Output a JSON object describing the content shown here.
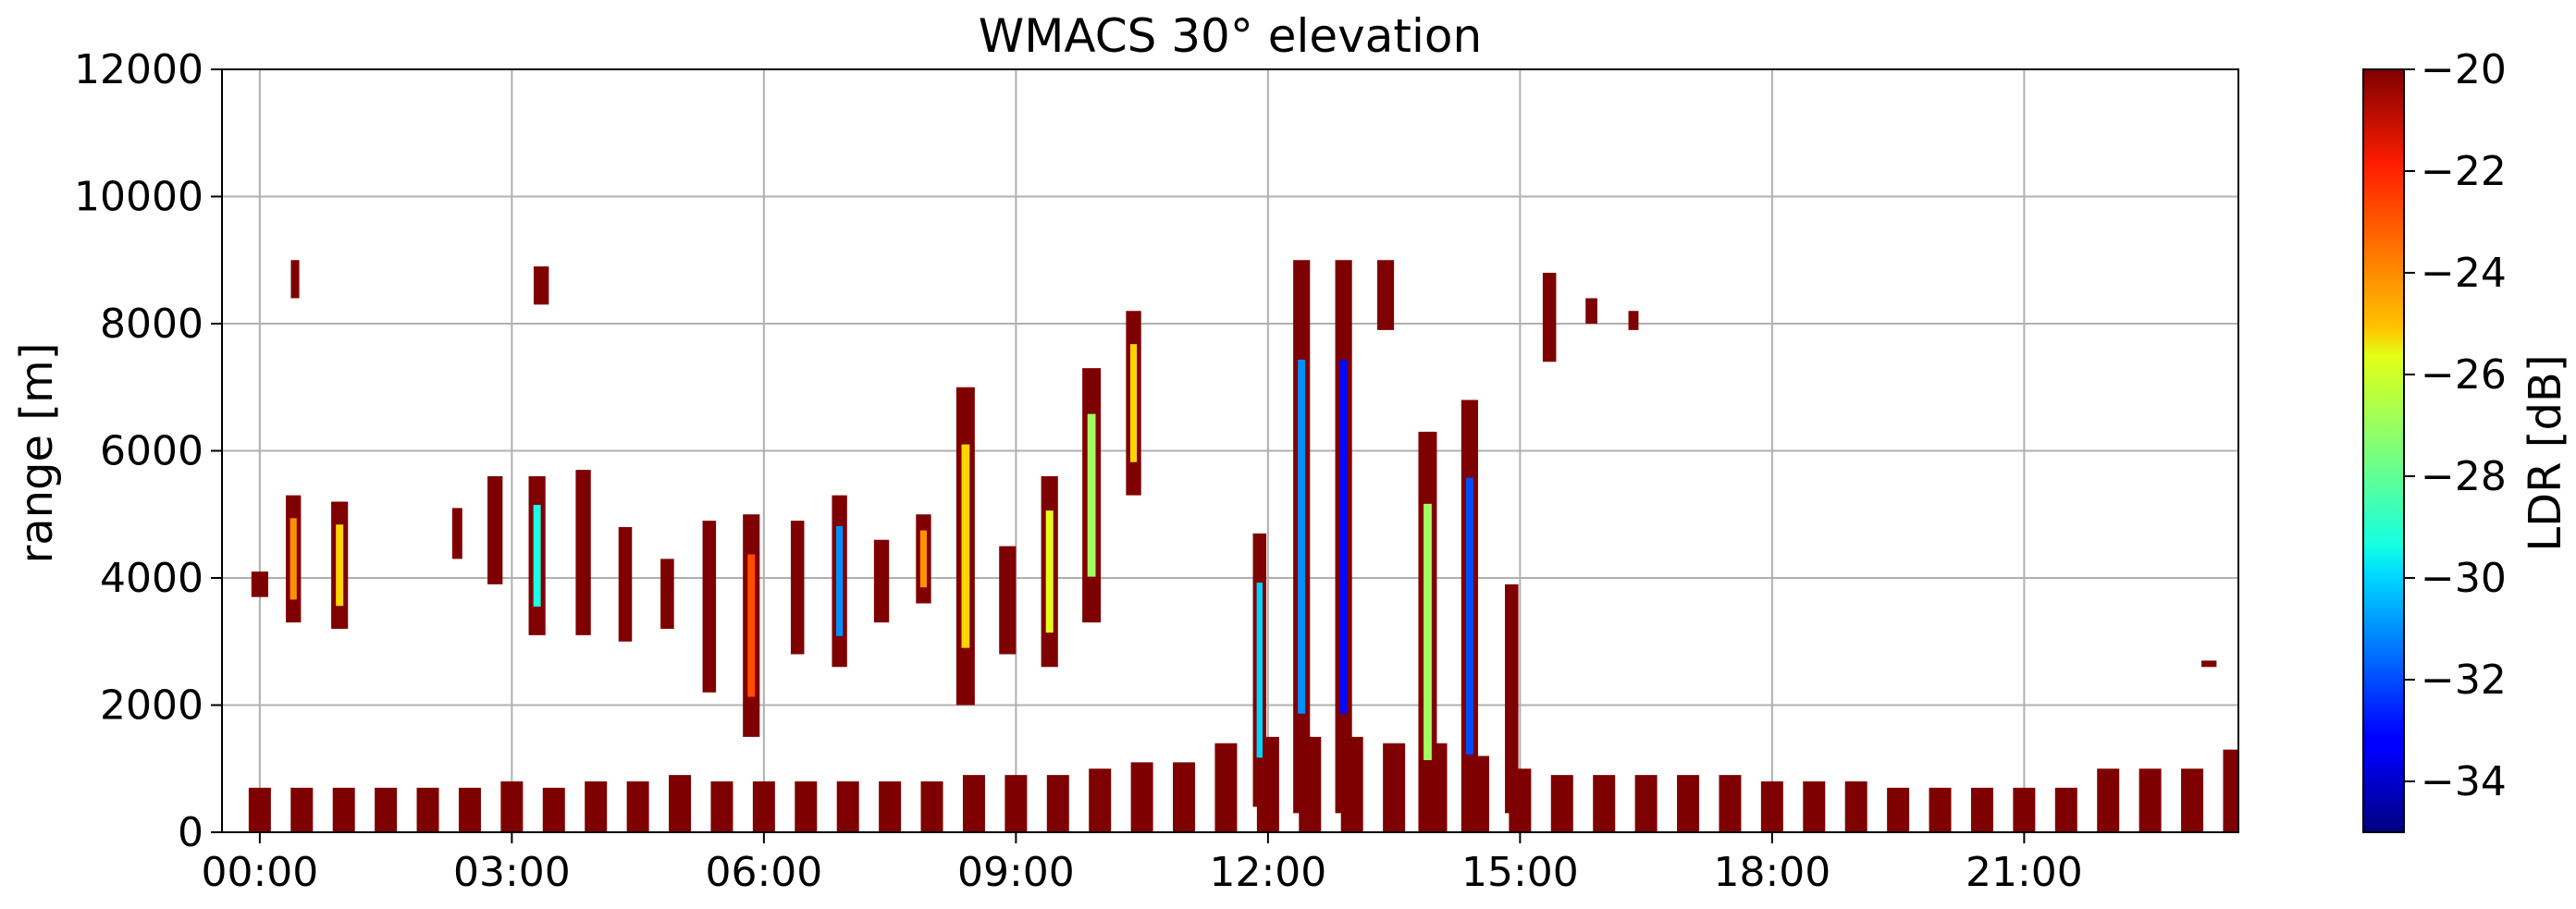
{
  "chart_data": {
    "type": "heatmap",
    "title": "WMACS 30° elevation",
    "ylabel": "range [m]",
    "xlabel": "",
    "colorbar_label": "LDR [dB]",
    "x_ticks": [
      "00:00",
      "03:00",
      "06:00",
      "09:00",
      "12:00",
      "15:00",
      "18:00",
      "21:00"
    ],
    "x_tick_hours": [
      0,
      3,
      6,
      9,
      12,
      15,
      18,
      21
    ],
    "xlim_hours": [
      -0.45,
      23.55
    ],
    "y_ticks": [
      0,
      2000,
      4000,
      6000,
      8000,
      10000,
      12000
    ],
    "ylim": [
      0,
      12000
    ],
    "colorbar_ticks": [
      -20,
      -22,
      -24,
      -26,
      -28,
      -30,
      -32,
      -34
    ],
    "colorbar_range": [
      -35,
      -20
    ],
    "colormap": "jet",
    "grid": true,
    "profiles": [
      {
        "t": 0.0,
        "w": 0.2,
        "y0": 3700,
        "y1": 4100,
        "ldr": -20
      },
      {
        "t": 0.4,
        "w": 0.18,
        "y0": 3300,
        "y1": 5300,
        "ldr": -24
      },
      {
        "t": 0.42,
        "w": 0.1,
        "y0": 8400,
        "y1": 9000,
        "ldr": -20
      },
      {
        "t": 0.95,
        "w": 0.2,
        "y0": 3200,
        "y1": 5200,
        "ldr": -25
      },
      {
        "t": 2.35,
        "w": 0.12,
        "y0": 4300,
        "y1": 5100,
        "ldr": -20
      },
      {
        "t": 2.8,
        "w": 0.18,
        "y0": 3900,
        "y1": 5600,
        "ldr": -20
      },
      {
        "t": 3.3,
        "w": 0.2,
        "y0": 3100,
        "y1": 5600,
        "ldr": -29
      },
      {
        "t": 3.35,
        "w": 0.18,
        "y0": 8300,
        "y1": 8900,
        "ldr": -20
      },
      {
        "t": 3.85,
        "w": 0.18,
        "y0": 3100,
        "y1": 5700,
        "ldr": -20
      },
      {
        "t": 4.35,
        "w": 0.16,
        "y0": 3000,
        "y1": 4800,
        "ldr": -20
      },
      {
        "t": 4.85,
        "w": 0.16,
        "y0": 3200,
        "y1": 4300,
        "ldr": -20
      },
      {
        "t": 5.35,
        "w": 0.16,
        "y0": 2200,
        "y1": 4900,
        "ldr": -20
      },
      {
        "t": 5.85,
        "w": 0.2,
        "y0": 1500,
        "y1": 5000,
        "ldr": -23
      },
      {
        "t": 6.4,
        "w": 0.16,
        "y0": 2800,
        "y1": 4900,
        "ldr": -20
      },
      {
        "t": 6.9,
        "w": 0.18,
        "y0": 2600,
        "y1": 5300,
        "ldr": -31
      },
      {
        "t": 7.4,
        "w": 0.18,
        "y0": 3300,
        "y1": 4600,
        "ldr": -20
      },
      {
        "t": 7.9,
        "w": 0.18,
        "y0": 3600,
        "y1": 5000,
        "ldr": -24
      },
      {
        "t": 8.4,
        "w": 0.22,
        "y0": 2000,
        "y1": 7000,
        "ldr": -25
      },
      {
        "t": 8.9,
        "w": 0.2,
        "y0": 2800,
        "y1": 4500,
        "ldr": -20
      },
      {
        "t": 9.4,
        "w": 0.2,
        "y0": 2600,
        "y1": 5600,
        "ldr": -26
      },
      {
        "t": 9.9,
        "w": 0.22,
        "y0": 3300,
        "y1": 7300,
        "ldr": -27
      },
      {
        "t": 10.4,
        "w": 0.18,
        "y0": 5300,
        "y1": 8200,
        "ldr": -25
      },
      {
        "t": 11.9,
        "w": 0.16,
        "y0": 400,
        "y1": 4700,
        "ldr": -30
      },
      {
        "t": 12.4,
        "w": 0.2,
        "y0": 300,
        "y1": 9000,
        "ldr": -31
      },
      {
        "t": 12.9,
        "w": 0.2,
        "y0": 300,
        "y1": 9000,
        "ldr": -33
      },
      {
        "t": 13.4,
        "w": 0.2,
        "y0": 7900,
        "y1": 9000,
        "ldr": -20
      },
      {
        "t": 13.9,
        "w": 0.22,
        "y0": 0,
        "y1": 6300,
        "ldr": -27
      },
      {
        "t": 14.4,
        "w": 0.2,
        "y0": 0,
        "y1": 6800,
        "ldr": -32
      },
      {
        "t": 14.9,
        "w": 0.16,
        "y0": 300,
        "y1": 3900,
        "ldr": -20
      },
      {
        "t": 15.35,
        "w": 0.16,
        "y0": 7400,
        "y1": 8800,
        "ldr": -20
      },
      {
        "t": 15.85,
        "w": 0.14,
        "y0": 8000,
        "y1": 8400,
        "ldr": -20
      },
      {
        "t": 16.35,
        "w": 0.12,
        "y0": 7900,
        "y1": 8200,
        "ldr": -20
      },
      {
        "t": 23.2,
        "w": 0.18,
        "y0": 2600,
        "y1": 2700,
        "ldr": -20
      }
    ],
    "low_level_echo_hours": [
      0.0,
      0.5,
      1.0,
      1.5,
      2.0,
      2.5,
      3.0,
      3.5,
      4.0,
      4.5,
      5.0,
      5.5,
      6.0,
      6.5,
      7.0,
      7.5,
      8.0,
      8.5,
      9.0,
      9.5,
      10.0,
      10.5,
      11.0,
      11.5,
      12.0,
      12.5,
      13.0,
      13.5,
      14.0,
      14.5,
      15.0,
      15.5,
      16.0,
      16.5,
      17.0,
      17.5,
      18.0,
      18.5,
      19.0,
      19.5,
      20.0,
      20.5,
      21.0,
      21.5,
      22.0,
      22.5,
      23.0,
      23.5
    ],
    "low_level_echo_top": [
      700,
      700,
      700,
      700,
      700,
      700,
      800,
      700,
      800,
      800,
      900,
      800,
      800,
      800,
      800,
      800,
      800,
      900,
      900,
      900,
      1000,
      1100,
      1100,
      1400,
      1500,
      1500,
      1500,
      1400,
      1400,
      1200,
      1000,
      900,
      900,
      900,
      900,
      900,
      800,
      800,
      800,
      700,
      700,
      700,
      700,
      700,
      1000,
      1000,
      1000,
      1300
    ]
  }
}
